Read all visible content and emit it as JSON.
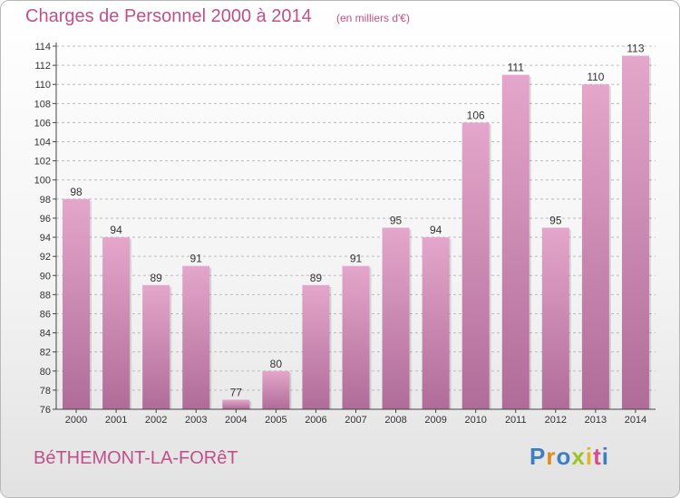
{
  "header": {
    "title": "Charges de Personnel 2000 à 2014",
    "subtitle": "(en milliers d'€)"
  },
  "footer": {
    "commune": "BéTHEMONT-LA-FORêT",
    "logo_letters": [
      {
        "char": "P",
        "color": "#3d7fc4"
      },
      {
        "char": "r",
        "color": "#e08a1e"
      },
      {
        "char": "o",
        "color": "#3d7fc4"
      },
      {
        "char": "x",
        "color": "#9cc428"
      },
      {
        "char": "i",
        "color": "#e0b81e"
      },
      {
        "char": "t",
        "color": "#d84c8c"
      },
      {
        "char": "i",
        "color": "#3d7fc4"
      }
    ]
  },
  "colors": {
    "accent": "#c0508a",
    "bar_light": "#e4a6cb",
    "bar_dark": "#b06c98",
    "grid": "#bbbbbb"
  },
  "chart_data": {
    "type": "bar",
    "categories": [
      "2000",
      "2001",
      "2002",
      "2003",
      "2004",
      "2005",
      "2006",
      "2007",
      "2008",
      "2009",
      "2010",
      "2011",
      "2012",
      "2013",
      "2014"
    ],
    "values": [
      98,
      94,
      89,
      91,
      77,
      80,
      89,
      91,
      95,
      94,
      106,
      111,
      95,
      110,
      113
    ],
    "ylim": [
      76,
      114
    ],
    "yticks": [
      76,
      78,
      80,
      82,
      84,
      86,
      88,
      90,
      92,
      94,
      96,
      98,
      100,
      102,
      104,
      106,
      108,
      110,
      112,
      114
    ],
    "grid": "horizontal dashed",
    "data_labels": true
  }
}
